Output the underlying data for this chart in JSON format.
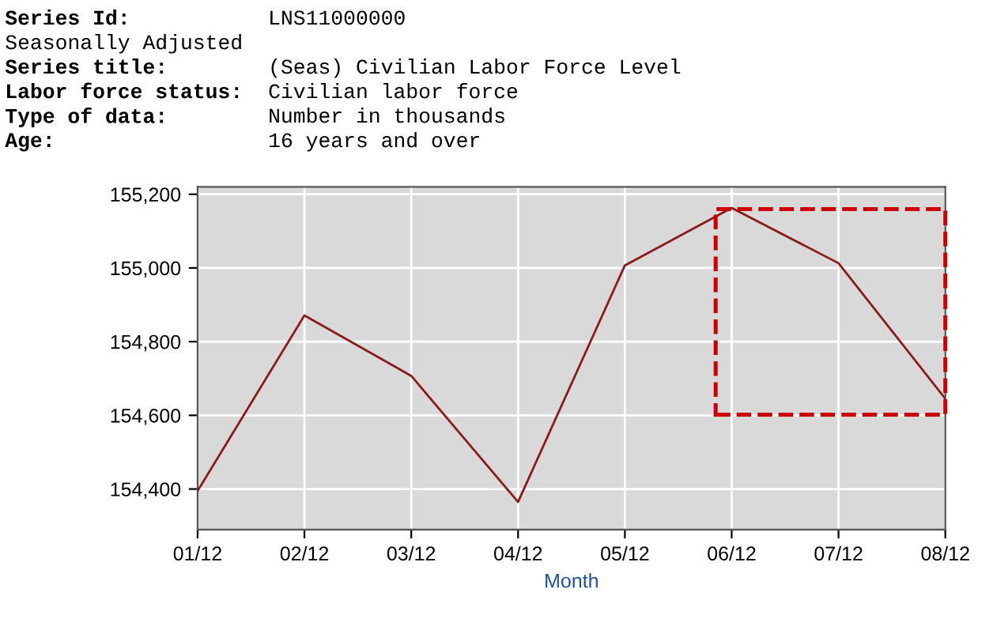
{
  "chart_data": {
    "type": "line",
    "xlabel": "Month",
    "annotations": [
      "Series Id:",
      "LNS11000000",
      "Seasonally Adjusted",
      "Series title:",
      "(Seas) Civilian Labor Force Level",
      "Labor force status:",
      "Civilian labor force",
      "Type of data:",
      "Number in thousands",
      "Age:",
      "16 years and over"
    ],
    "categories": [
      "01/12",
      "02/12",
      "03/12",
      "04/12",
      "05/12",
      "06/12",
      "07/12",
      "08/12"
    ],
    "series": [
      {
        "color": "#8b1a1a",
        "values": [
          154395,
          154871,
          154707,
          154365,
          155007,
          155163,
          155013,
          154645
        ]
      }
    ],
    "ylim": [
      154290,
      155220
    ],
    "yticks": [
      {
        "value": 154400,
        "label": "154,400"
      },
      {
        "value": 154600,
        "label": "154,600"
      },
      {
        "value": 154800,
        "label": "154,800"
      },
      {
        "value": 155000,
        "label": "155,000"
      },
      {
        "value": 155200,
        "label": "155,200"
      }
    ],
    "grid": true,
    "legend": false,
    "marker": "none",
    "line_style": "solid"
  }
}
